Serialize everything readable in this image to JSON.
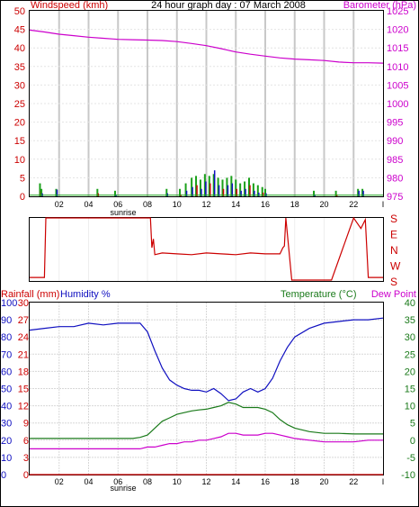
{
  "title": "24 hour graph day : 07 March 2008",
  "colors": {
    "wind": "#cc0000",
    "gust": "#1aa01a",
    "windavg": "#1010c0",
    "baro": "#cc00cc",
    "humidity": "#1010c0",
    "temperature": "#1a7a1a",
    "dewpoint": "#cc00cc",
    "rain": "#cc0000",
    "direction": "#cc0000",
    "grid": "#c8c8c8"
  },
  "time_axis": {
    "ticks": [
      "02",
      "04",
      "06",
      "08",
      "10",
      "12",
      "14",
      "16",
      "18",
      "20",
      "22",
      "I"
    ],
    "sunrise_label": "sunrise",
    "range_hours": [
      0,
      24
    ]
  },
  "chart_data": [
    {
      "type": "line",
      "title": "24 hour graph day : 07 March 2008",
      "left_axis": {
        "label": "Windspeed (kmh)",
        "ticks": [
          "0",
          "5",
          "10",
          "15",
          "20",
          "25",
          "30",
          "35",
          "40",
          "45",
          "50"
        ],
        "range": [
          0,
          50
        ]
      },
      "right_axis": {
        "label": "Barometer (hPa)",
        "ticks": [
          "975",
          "980",
          "985",
          "990",
          "995",
          "1000",
          "1005",
          "1010",
          "1015",
          "1020",
          "1025"
        ],
        "range": [
          975,
          1025
        ]
      },
      "series": [
        {
          "name": "Barometer (hPa)",
          "axis": "right",
          "x": [
            0,
            1,
            2,
            3,
            4,
            5,
            6,
            7,
            8,
            9,
            10,
            11,
            12,
            13,
            14,
            15,
            16,
            17,
            18,
            19,
            20,
            21,
            22,
            23,
            24
          ],
          "y": [
            1019.8,
            1019.3,
            1018.7,
            1018.3,
            1017.9,
            1017.6,
            1017.3,
            1017.2,
            1017.1,
            1017.0,
            1016.7,
            1016.2,
            1015.6,
            1014.8,
            1013.9,
            1013.3,
            1012.8,
            1012.3,
            1012.0,
            1011.8,
            1011.6,
            1011.2,
            1011.0,
            1011.0,
            1010.9
          ]
        }
      ],
      "wind_bars": {
        "x": [
          0.7,
          0.8,
          1.8,
          4.6,
          5.8,
          9.3,
          10.2,
          10.6,
          11.0,
          11.3,
          11.6,
          11.9,
          12.2,
          12.5,
          12.8,
          13.1,
          13.4,
          13.7,
          14.0,
          14.3,
          14.6,
          14.9,
          15.2,
          15.5,
          15.8,
          16.0,
          19.3,
          20.8,
          22.3,
          22.6
        ],
        "gust": [
          3.5,
          2.0,
          2.0,
          2.0,
          1.5,
          2.0,
          2.0,
          3.5,
          5.0,
          5.5,
          4.5,
          6.0,
          5.5,
          6.0,
          5.0,
          4.5,
          5.0,
          5.5,
          4.5,
          3.5,
          4.0,
          5.0,
          3.5,
          3.0,
          2.5,
          2.0,
          1.5,
          1.5,
          2.0,
          2.0
        ],
        "speed": [
          1.5,
          0.8,
          1.8,
          0.8,
          0.5,
          0.8,
          0.5,
          1.5,
          2.5,
          3.0,
          2.0,
          4.0,
          3.5,
          7.0,
          3.0,
          2.0,
          3.0,
          3.5,
          2.0,
          1.5,
          2.0,
          3.0,
          1.5,
          1.0,
          1.0,
          0.8,
          0.5,
          0.5,
          1.5,
          1.5
        ]
      }
    },
    {
      "type": "line",
      "right_axis": {
        "ticks": [
          "S",
          "E",
          "N",
          "W",
          "S"
        ]
      },
      "series": [
        {
          "name": "Wind direction",
          "x": [
            0,
            0.5,
            1.0,
            1.1,
            3.0,
            6.0,
            8.0,
            8.2,
            8.3,
            8.4,
            8.5,
            9.0,
            10.0,
            11.0,
            12.0,
            13.0,
            14.0,
            15.0,
            16.0,
            17.0,
            17.2,
            17.3,
            17.4,
            17.8,
            20.5,
            22.0,
            22.5,
            22.8,
            23.0,
            24.0
          ],
          "y": [
            200,
            200,
            200,
            180,
            180,
            180,
            180,
            180,
            10,
            60,
            330,
            340,
            335,
            330,
            340,
            335,
            330,
            340,
            335,
            335,
            10,
            20,
            180,
            185,
            185,
            180,
            120,
            170,
            200,
            200
          ]
        }
      ]
    },
    {
      "type": "line",
      "left_axis_labels": {
        "rainfall": "Rainfall (mm)",
        "humidity": "Humidity %"
      },
      "humidity_ticks": [
        "0",
        "10",
        "20",
        "30",
        "40",
        "50",
        "60",
        "70",
        "80",
        "90",
        "100"
      ],
      "rain_ticks": [
        "0",
        "3",
        "6",
        "9",
        "12",
        "15",
        "18",
        "21",
        "24",
        "27",
        "30"
      ],
      "right_axis": {
        "label_temp": "Temperature (°C)",
        "label_dew": "Dew Point",
        "ticks": [
          "-10",
          "-5",
          "0",
          "5",
          "10",
          "15",
          "20",
          "25",
          "30",
          "35",
          "40"
        ],
        "range": [
          -10,
          40
        ]
      },
      "series": [
        {
          "name": "Humidity %",
          "axis": "humidity",
          "x": [
            0,
            1,
            2,
            3,
            4,
            5,
            6,
            7,
            7.5,
            8,
            8.5,
            9,
            9.5,
            10,
            10.5,
            11,
            11.5,
            12,
            12.5,
            13,
            13.5,
            14,
            14.5,
            15,
            15.5,
            16,
            16.5,
            17,
            17.5,
            18,
            19,
            20,
            21,
            22,
            23,
            24
          ],
          "y": [
            84,
            85,
            86,
            86,
            88,
            87,
            88,
            88,
            88,
            83,
            72,
            62,
            55,
            52,
            50,
            49,
            49,
            48,
            50,
            47,
            43,
            44,
            48,
            50,
            48,
            50,
            56,
            66,
            74,
            80,
            85,
            88,
            89,
            90,
            90,
            91
          ]
        },
        {
          "name": "Temperature (°C)",
          "axis": "temp",
          "x": [
            0,
            1,
            2,
            3,
            4,
            5,
            6,
            7,
            7.5,
            8,
            8.5,
            9,
            9.5,
            10,
            10.5,
            11,
            11.5,
            12,
            12.5,
            13,
            13.5,
            14,
            14.5,
            15,
            15.5,
            16,
            16.5,
            17,
            17.5,
            18,
            19,
            20,
            21,
            22,
            23,
            24
          ],
          "y": [
            0.5,
            0.5,
            0.5,
            0.5,
            0.5,
            0.5,
            0.5,
            0.5,
            0.8,
            1.5,
            3.5,
            5.5,
            6.5,
            7.5,
            8.0,
            8.5,
            8.8,
            9.0,
            9.5,
            10.0,
            11.0,
            10.5,
            9.5,
            9.5,
            9.5,
            9.0,
            8.0,
            6.0,
            4.5,
            3.5,
            2.5,
            2.0,
            2.0,
            1.8,
            1.8,
            1.8
          ]
        },
        {
          "name": "Dew Point",
          "axis": "temp",
          "x": [
            0,
            1,
            2,
            3,
            4,
            5,
            6,
            7,
            7.5,
            8,
            8.5,
            9,
            9.5,
            10,
            10.5,
            11,
            11.5,
            12,
            12.5,
            13,
            13.5,
            14,
            14.5,
            15,
            15.5,
            16,
            16.5,
            17,
            17.5,
            18,
            19,
            20,
            21,
            22,
            23,
            24
          ],
          "y": [
            -2.5,
            -2.5,
            -2.5,
            -2.5,
            -2.5,
            -2.5,
            -2.5,
            -2.5,
            -2.5,
            -2.0,
            -2.0,
            -1.5,
            -1.0,
            -1.0,
            -0.5,
            -0.5,
            0,
            0,
            0.5,
            1.0,
            2.0,
            2.0,
            1.5,
            1.5,
            1.5,
            2.0,
            2.0,
            1.5,
            1.0,
            0.5,
            0,
            -0.5,
            -0.5,
            -0.5,
            0,
            0
          ]
        },
        {
          "name": "Rainfall (mm)",
          "axis": "rain",
          "x": [
            0,
            24
          ],
          "y": [
            0,
            0
          ]
        }
      ]
    }
  ]
}
